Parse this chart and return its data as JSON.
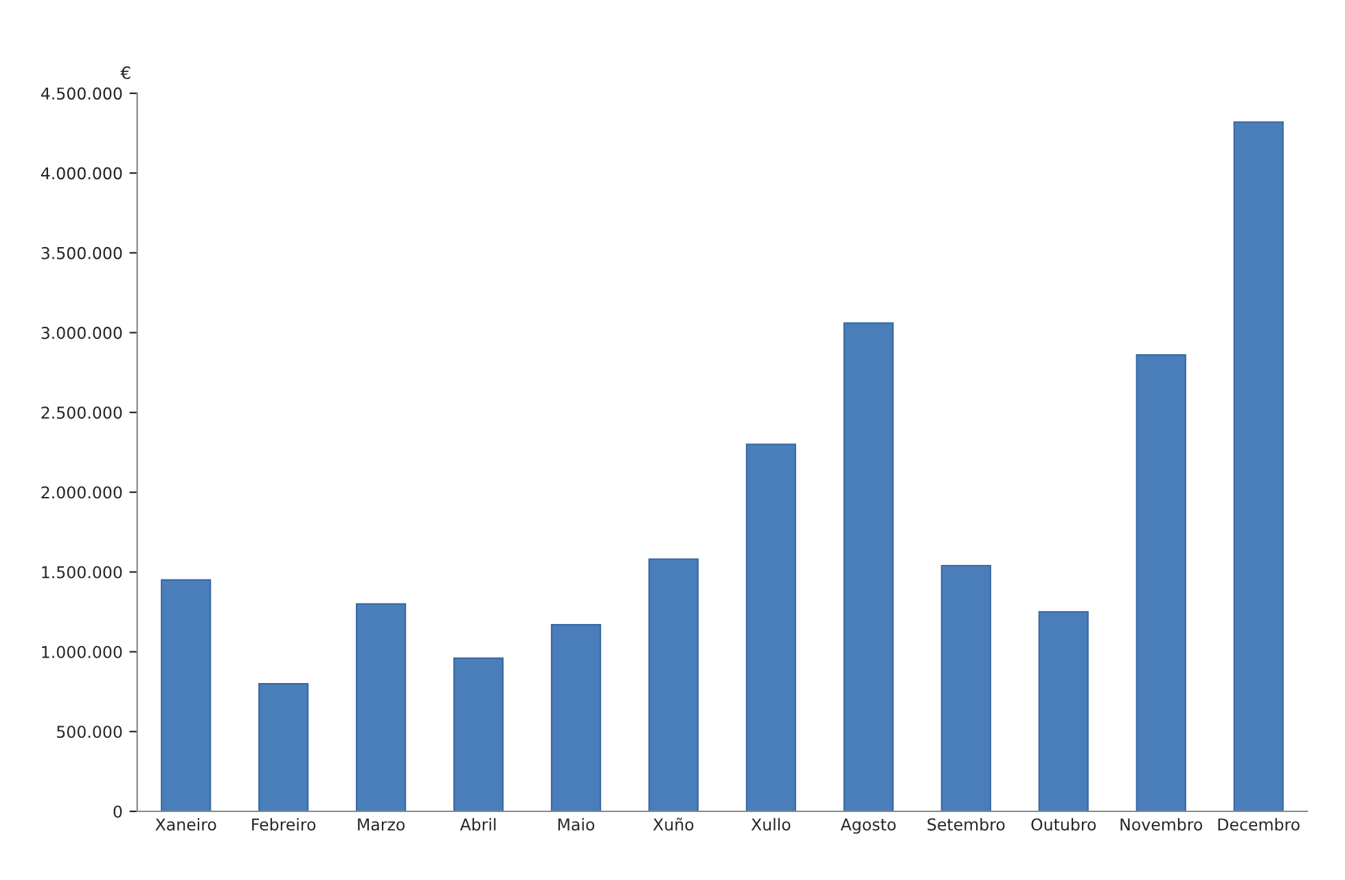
{
  "chart_data": {
    "type": "bar",
    "ylabel": "€",
    "categories": [
      "Xaneiro",
      "Febreiro",
      "Marzo",
      "Abril",
      "Maio",
      "Xuño",
      "Xullo",
      "Agosto",
      "Setembro",
      "Outubro",
      "Novembro",
      "Decembro"
    ],
    "values": [
      1450000,
      800000,
      1300000,
      960000,
      1170000,
      1580000,
      2300000,
      3060000,
      1540000,
      1250000,
      2860000,
      4320000
    ],
    "color": "#4a7ebb",
    "ylim": [
      0,
      4500000
    ],
    "yticks": [
      0,
      {
        "value": 500000,
        "label": "500.000"
      },
      {
        "value": 1000000,
        "label": "1.000.000"
      },
      {
        "value": 1500000,
        "label": "1.500.000"
      },
      {
        "value": 2000000,
        "label": "2.000.000"
      },
      {
        "value": 2500000,
        "label": "2.500.000"
      },
      {
        "value": 3000000,
        "label": "3.000.000"
      },
      {
        "value": 3500000,
        "label": "3.500.000"
      },
      {
        "value": 4000000,
        "label": "4.000.000"
      },
      {
        "value": 4500000,
        "label": "4.500.000"
      }
    ],
    "grid": false,
    "legend": false
  }
}
